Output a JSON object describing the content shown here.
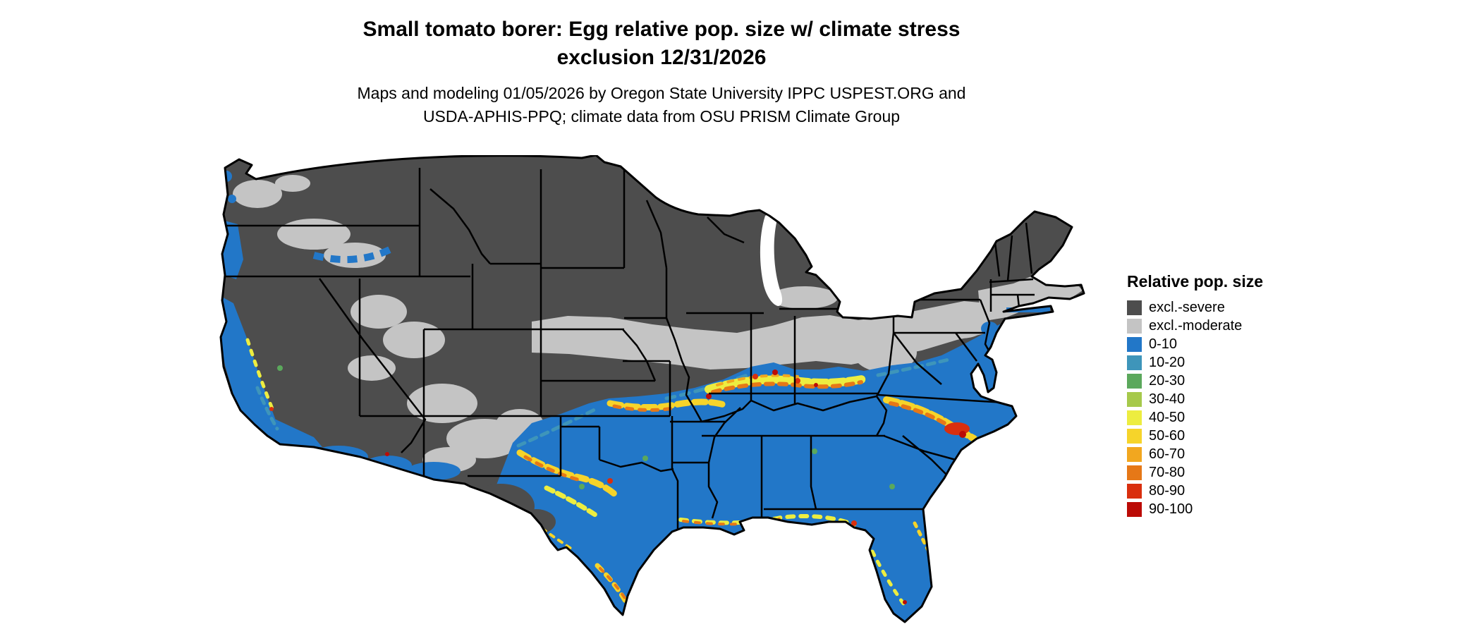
{
  "title": {
    "line1": "Small tomato borer: Egg relative pop. size w/ climate stress",
    "line2": "exclusion 12/31/2026"
  },
  "subtitle": {
    "line1": "Maps and modeling 01/05/2026 by Oregon State University IPPC USPEST.ORG and",
    "line2": "USDA-APHIS-PPQ; climate data from OSU PRISM Climate Group"
  },
  "legend": {
    "title": "Relative pop. size",
    "items": [
      {
        "label": "excl.-severe",
        "color": "#4d4d4d"
      },
      {
        "label": "excl.-moderate",
        "color": "#c4c4c4"
      },
      {
        "label": "0-10",
        "color": "#2277c8"
      },
      {
        "label": "10-20",
        "color": "#3e95ba"
      },
      {
        "label": "20-30",
        "color": "#5ba85c"
      },
      {
        "label": "30-40",
        "color": "#a6c94b"
      },
      {
        "label": "40-50",
        "color": "#eded40"
      },
      {
        "label": "50-60",
        "color": "#f6d42a"
      },
      {
        "label": "60-70",
        "color": "#f2a71f"
      },
      {
        "label": "70-80",
        "color": "#e67817"
      },
      {
        "label": "80-90",
        "color": "#d92f0e"
      },
      {
        "label": "90-100",
        "color": "#bb0b06"
      }
    ]
  }
}
